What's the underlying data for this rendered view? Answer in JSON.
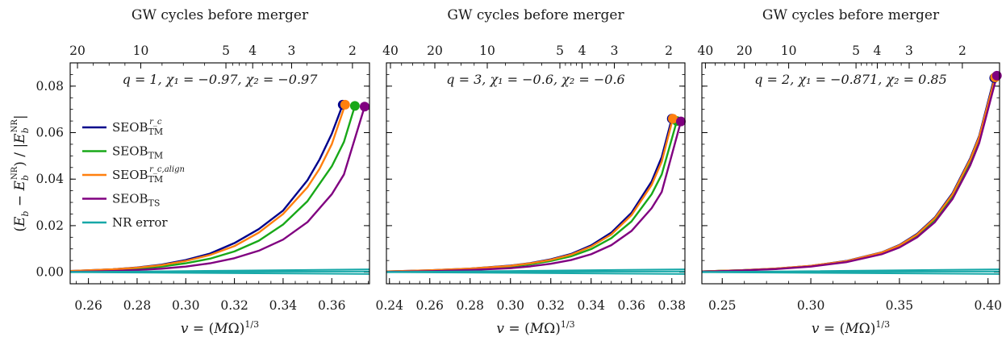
{
  "figure": {
    "ylabel": "(E_b − E_b^NR) / |E_b^NR|",
    "legend_placement": "upper-left of first panel"
  },
  "colors": {
    "SEOB_TM_rc": "#00008b",
    "SEOB_TM": "#18a818",
    "SEOB_TM_rc_align": "#ff7f0e",
    "SEOB_TS": "#800080",
    "NR_error": "#17a8a8"
  },
  "legend": [
    {
      "key": "SEOB_TM_rc",
      "base": "SEOB",
      "sub": "TM",
      "sup": "r_c"
    },
    {
      "key": "SEOB_TM",
      "base": "SEOB",
      "sub": "TM",
      "sup": ""
    },
    {
      "key": "SEOB_TM_rc_align",
      "base": "SEOB",
      "sub": "TM",
      "sup": "r_c,align"
    },
    {
      "key": "SEOB_TS",
      "base": "SEOB",
      "sub": "TS",
      "sup": ""
    },
    {
      "key": "NR_error",
      "base": "NR error",
      "sub": "",
      "sup": ""
    }
  ],
  "chart_data": [
    {
      "type": "line",
      "title": "GW cycles before merger",
      "annotation": "q = 1,  χ₁ = −0.97,  χ₂ = −0.97",
      "xlabel": "v = (MΩ)^{1/3}",
      "xlim": [
        0.2525,
        0.3755
      ],
      "ylim": [
        -0.005,
        0.09
      ],
      "x_ticks": [
        0.26,
        0.28,
        0.3,
        0.32,
        0.34,
        0.36
      ],
      "x_tick_labels": [
        "0.26",
        "0.28",
        "0.30",
        "0.32",
        "0.34",
        "0.36"
      ],
      "y_ticks": [
        0.0,
        0.02,
        0.04,
        0.06,
        0.08
      ],
      "y_tick_labels": [
        "0.00",
        "0.02",
        "0.04",
        "0.06",
        "0.08"
      ],
      "top_ticks": [
        {
          "label": "20",
          "v": 0.2555
        },
        {
          "label": "10",
          "v": 0.2815
        },
        {
          "label": "5",
          "v": 0.3165
        },
        {
          "label": "4",
          "v": 0.3275
        },
        {
          "label": "3",
          "v": 0.3435
        },
        {
          "label": "2",
          "v": 0.3685
        }
      ],
      "series": [
        {
          "key": "SEOB_TM_rc",
          "x": [
            0.2525,
            0.27,
            0.28,
            0.29,
            0.3,
            0.31,
            0.32,
            0.33,
            0.34,
            0.35,
            0.355,
            0.36,
            0.3645
          ],
          "y": [
            0.0005,
            0.0012,
            0.002,
            0.0032,
            0.0052,
            0.008,
            0.0125,
            0.0185,
            0.0265,
            0.0395,
            0.0485,
            0.0595,
            0.072
          ],
          "marker": true
        },
        {
          "key": "SEOB_TM",
          "x": [
            0.2525,
            0.27,
            0.28,
            0.29,
            0.3,
            0.31,
            0.32,
            0.33,
            0.34,
            0.35,
            0.36,
            0.365,
            0.3695
          ],
          "y": [
            0.0003,
            0.0009,
            0.0015,
            0.0024,
            0.0038,
            0.0058,
            0.0089,
            0.0135,
            0.0205,
            0.0305,
            0.0455,
            0.056,
            0.0715
          ],
          "marker": true
        },
        {
          "key": "SEOB_TM_rc_align",
          "x": [
            0.2525,
            0.27,
            0.28,
            0.29,
            0.3,
            0.31,
            0.32,
            0.33,
            0.34,
            0.35,
            0.355,
            0.36,
            0.3655
          ],
          "y": [
            0.0005,
            0.0012,
            0.0019,
            0.003,
            0.0048,
            0.0074,
            0.0112,
            0.017,
            0.025,
            0.0365,
            0.0445,
            0.055,
            0.072
          ],
          "marker": true
        },
        {
          "key": "SEOB_TS",
          "x": [
            0.2525,
            0.27,
            0.28,
            0.29,
            0.3,
            0.31,
            0.32,
            0.33,
            0.34,
            0.35,
            0.36,
            0.365,
            0.3735
          ],
          "y": [
            0.0001,
            0.0005,
            0.0009,
            0.0015,
            0.0024,
            0.0038,
            0.006,
            0.0092,
            0.014,
            0.0215,
            0.0335,
            0.042,
            0.0712
          ],
          "marker": true
        },
        {
          "key": "NR_error",
          "x": [
            0.2525,
            0.3755
          ],
          "y": [
            0.0,
            0.0012
          ],
          "marker": false
        },
        {
          "key": "NR_error",
          "x": [
            0.2525,
            0.3755
          ],
          "y": [
            0.0,
            -0.0008
          ],
          "marker": false
        },
        {
          "key": "NR_error",
          "x": [
            0.2525,
            0.3755
          ],
          "y": [
            0.0001,
            0.0003
          ],
          "marker": false
        }
      ]
    },
    {
      "type": "line",
      "title": "GW cycles before merger",
      "annotation": "q = 3,  χ₁ = −0.6,  χ₂ = −0.6",
      "xlabel": "v = (MΩ)^{1/3}",
      "xlim": [
        0.2385,
        0.3865
      ],
      "ylim": [
        -0.005,
        0.09
      ],
      "x_ticks": [
        0.24,
        0.26,
        0.28,
        0.3,
        0.32,
        0.34,
        0.36,
        0.38
      ],
      "x_tick_labels": [
        "0.24",
        "0.26",
        "0.28",
        "0.30",
        "0.32",
        "0.34",
        "0.36",
        "0.38"
      ],
      "y_ticks": [
        0.0,
        0.02,
        0.04,
        0.06,
        0.08
      ],
      "y_tick_labels": [
        "",
        "",
        "",
        "",
        ""
      ],
      "top_ticks": [
        {
          "label": "40",
          "v": 0.2405
        },
        {
          "label": "20",
          "v": 0.2625
        },
        {
          "label": "10",
          "v": 0.2885
        },
        {
          "label": "5",
          "v": 0.3245
        },
        {
          "label": "4",
          "v": 0.3355
        },
        {
          "label": "3",
          "v": 0.3515
        },
        {
          "label": "2",
          "v": 0.3785
        }
      ],
      "series": [
        {
          "key": "SEOB_TM_rc",
          "x": [
            0.2385,
            0.26,
            0.28,
            0.3,
            0.31,
            0.32,
            0.33,
            0.34,
            0.35,
            0.36,
            0.37,
            0.375,
            0.38
          ],
          "y": [
            0.0003,
            0.0008,
            0.0015,
            0.0028,
            0.0039,
            0.0055,
            0.0078,
            0.0115,
            0.017,
            0.0255,
            0.039,
            0.0495,
            0.066
          ],
          "marker": true
        },
        {
          "key": "SEOB_TM",
          "x": [
            0.2385,
            0.26,
            0.28,
            0.3,
            0.31,
            0.32,
            0.33,
            0.34,
            0.35,
            0.36,
            0.37,
            0.375,
            0.3825
          ],
          "y": [
            0.0002,
            0.0007,
            0.0013,
            0.0024,
            0.0034,
            0.0048,
            0.0068,
            0.0099,
            0.0146,
            0.0218,
            0.0335,
            0.042,
            0.065
          ],
          "marker": true
        },
        {
          "key": "SEOB_TM_rc_align",
          "x": [
            0.2385,
            0.26,
            0.28,
            0.3,
            0.31,
            0.32,
            0.33,
            0.34,
            0.35,
            0.36,
            0.37,
            0.375,
            0.3805
          ],
          "y": [
            0.0003,
            0.0008,
            0.0015,
            0.0027,
            0.0038,
            0.0053,
            0.0075,
            0.011,
            0.0162,
            0.0245,
            0.0375,
            0.0475,
            0.066
          ],
          "marker": true
        },
        {
          "key": "SEOB_TS",
          "x": [
            0.2385,
            0.26,
            0.28,
            0.3,
            0.31,
            0.32,
            0.33,
            0.34,
            0.35,
            0.36,
            0.37,
            0.375,
            0.3845
          ],
          "y": [
            0.0001,
            0.0004,
            0.0009,
            0.0017,
            0.0025,
            0.0036,
            0.0052,
            0.0077,
            0.0116,
            0.0177,
            0.0275,
            0.0345,
            0.0648
          ],
          "marker": true
        },
        {
          "key": "NR_error",
          "x": [
            0.2385,
            0.3865
          ],
          "y": [
            0.0,
            0.0012
          ],
          "marker": false
        },
        {
          "key": "NR_error",
          "x": [
            0.2385,
            0.3865
          ],
          "y": [
            0.0,
            -0.0008
          ],
          "marker": false
        },
        {
          "key": "NR_error",
          "x": [
            0.2385,
            0.3865
          ],
          "y": [
            0.0001,
            0.0003
          ],
          "marker": false
        }
      ]
    },
    {
      "type": "line",
      "title": "GW cycles before merger",
      "annotation": "q = 2,  χ₁ = −0.871,  χ₂ = 0.85",
      "xlabel": "v = (MΩ)^{1/3}",
      "xlim": [
        0.2385,
        0.4065
      ],
      "ylim": [
        -0.005,
        0.09
      ],
      "x_ticks": [
        0.25,
        0.3,
        0.35,
        0.4
      ],
      "x_tick_labels": [
        "0.25",
        "0.30",
        "0.35",
        "0.40"
      ],
      "y_ticks": [
        0.0,
        0.02,
        0.04,
        0.06,
        0.08
      ],
      "y_tick_labels": [
        "",
        "",
        "",
        "",
        ""
      ],
      "top_ticks": [
        {
          "label": "40",
          "v": 0.2405
        },
        {
          "label": "20",
          "v": 0.2625
        },
        {
          "label": "10",
          "v": 0.2875
        },
        {
          "label": "5",
          "v": 0.3255
        },
        {
          "label": "4",
          "v": 0.3375
        },
        {
          "label": "3",
          "v": 0.3555
        },
        {
          "label": "2",
          "v": 0.3855
        }
      ],
      "series": [
        {
          "key": "SEOB_TM_rc",
          "x": [
            0.2385,
            0.26,
            0.28,
            0.3,
            0.32,
            0.34,
            0.35,
            0.36,
            0.37,
            0.38,
            0.39,
            0.395,
            0.4035
          ],
          "y": [
            0.0003,
            0.0008,
            0.0015,
            0.0027,
            0.0048,
            0.0085,
            0.0117,
            0.0165,
            0.0235,
            0.034,
            0.049,
            0.0585,
            0.0835
          ],
          "marker": true
        },
        {
          "key": "SEOB_TM",
          "x": [
            0.2385,
            0.26,
            0.28,
            0.3,
            0.32,
            0.34,
            0.35,
            0.36,
            0.37,
            0.38,
            0.39,
            0.395,
            0.404
          ],
          "y": [
            0.0003,
            0.0008,
            0.0014,
            0.0026,
            0.0046,
            0.0082,
            0.0112,
            0.0158,
            0.0226,
            0.0328,
            0.0475,
            0.057,
            0.0838
          ],
          "marker": true
        },
        {
          "key": "SEOB_TM_rc_align",
          "x": [
            0.2385,
            0.26,
            0.28,
            0.3,
            0.32,
            0.34,
            0.35,
            0.36,
            0.37,
            0.38,
            0.39,
            0.395,
            0.404
          ],
          "y": [
            0.0003,
            0.0008,
            0.0015,
            0.0027,
            0.0047,
            0.0084,
            0.0115,
            0.0162,
            0.0232,
            0.0335,
            0.0485,
            0.058,
            0.0838
          ],
          "marker": true
        },
        {
          "key": "SEOB_TS",
          "x": [
            0.2385,
            0.26,
            0.28,
            0.3,
            0.32,
            0.34,
            0.35,
            0.36,
            0.37,
            0.38,
            0.39,
            0.395,
            0.405
          ],
          "y": [
            0.0002,
            0.0007,
            0.0013,
            0.0024,
            0.0043,
            0.0077,
            0.0106,
            0.015,
            0.0215,
            0.0315,
            0.046,
            0.0555,
            0.0845
          ],
          "marker": true
        },
        {
          "key": "NR_error",
          "x": [
            0.2385,
            0.4065
          ],
          "y": [
            0.0,
            0.0012
          ],
          "marker": false
        },
        {
          "key": "NR_error",
          "x": [
            0.2385,
            0.4065
          ],
          "y": [
            0.0,
            -0.0008
          ],
          "marker": false
        },
        {
          "key": "NR_error",
          "x": [
            0.2385,
            0.4065
          ],
          "y": [
            0.0001,
            0.0003
          ],
          "marker": false
        }
      ]
    }
  ]
}
